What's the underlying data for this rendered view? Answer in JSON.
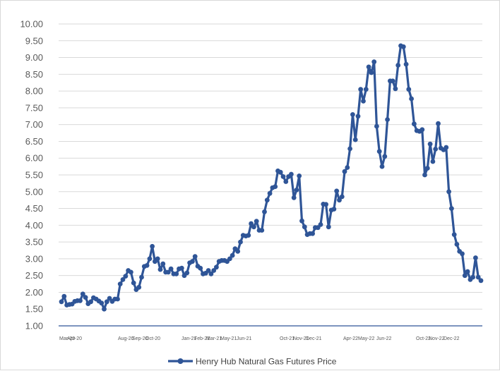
{
  "chart_data": {
    "type": "line",
    "title": "",
    "xlabel": "",
    "ylabel": "",
    "ylim": [
      1.0,
      10.0
    ],
    "y_ticks": [
      "1.00",
      "1.50",
      "2.00",
      "2.50",
      "3.00",
      "3.50",
      "4.00",
      "4.50",
      "5.00",
      "5.50",
      "6.00",
      "6.50",
      "7.00",
      "7.50",
      "8.00",
      "8.50",
      "9.00",
      "9.50",
      "10.00"
    ],
    "x_ticks": [
      "Mar-20",
      "Apr-20",
      "Aug-20",
      "Sep-20",
      "Oct-20",
      "Jan-21",
      "Feb-21",
      "Mar-21",
      "May-21",
      "Jun-21",
      "Oct-21",
      "Nov-21",
      "Dec-21",
      "Apr-22",
      "May-22",
      "Jun-22",
      "Oct-22",
      "Nov-22",
      "Dec-22"
    ],
    "grid": "horizontal",
    "legend_position": "bottom",
    "color": "#2f5597",
    "series": [
      {
        "name": "Henry Hub Natural Gas Futures Price",
        "values": [
          1.72,
          1.88,
          1.62,
          1.64,
          1.65,
          1.73,
          1.75,
          1.75,
          1.95,
          1.85,
          1.66,
          1.72,
          1.84,
          1.8,
          1.74,
          1.68,
          1.5,
          1.72,
          1.82,
          1.73,
          1.8,
          1.8,
          2.25,
          2.38,
          2.48,
          2.65,
          2.6,
          2.28,
          2.08,
          2.15,
          2.45,
          2.77,
          2.8,
          3.0,
          3.37,
          2.92,
          3.0,
          2.68,
          2.85,
          2.6,
          2.6,
          2.7,
          2.55,
          2.55,
          2.7,
          2.72,
          2.5,
          2.58,
          2.88,
          2.92,
          3.07,
          2.78,
          2.72,
          2.55,
          2.57,
          2.65,
          2.55,
          2.65,
          2.75,
          2.92,
          2.95,
          2.95,
          2.92,
          3.0,
          3.1,
          3.3,
          3.22,
          3.5,
          3.7,
          3.68,
          3.7,
          4.05,
          3.95,
          4.12,
          3.85,
          3.85,
          4.4,
          4.75,
          4.95,
          5.12,
          5.15,
          5.62,
          5.58,
          5.45,
          5.3,
          5.45,
          5.52,
          4.82,
          5.05,
          5.47,
          4.13,
          3.95,
          3.72,
          3.75,
          3.75,
          3.93,
          3.93,
          4.02,
          4.63,
          4.62,
          3.95,
          4.45,
          4.48,
          5.02,
          4.75,
          4.85,
          5.6,
          5.72,
          6.28,
          7.3,
          6.55,
          7.25,
          8.05,
          7.7,
          8.05,
          8.72,
          8.55,
          8.87,
          6.95,
          6.2,
          5.75,
          6.05,
          7.15,
          8.3,
          8.3,
          8.07,
          8.77,
          9.35,
          9.32,
          8.8,
          8.05,
          7.77,
          7.02,
          6.82,
          6.8,
          6.85,
          5.5,
          5.7,
          6.42,
          5.9,
          6.27,
          7.03,
          6.3,
          6.25,
          6.32,
          5.0,
          4.5,
          3.72,
          3.43,
          3.22,
          3.15,
          2.5,
          2.62,
          2.38,
          2.45,
          3.03,
          2.45,
          2.35
        ]
      }
    ]
  }
}
